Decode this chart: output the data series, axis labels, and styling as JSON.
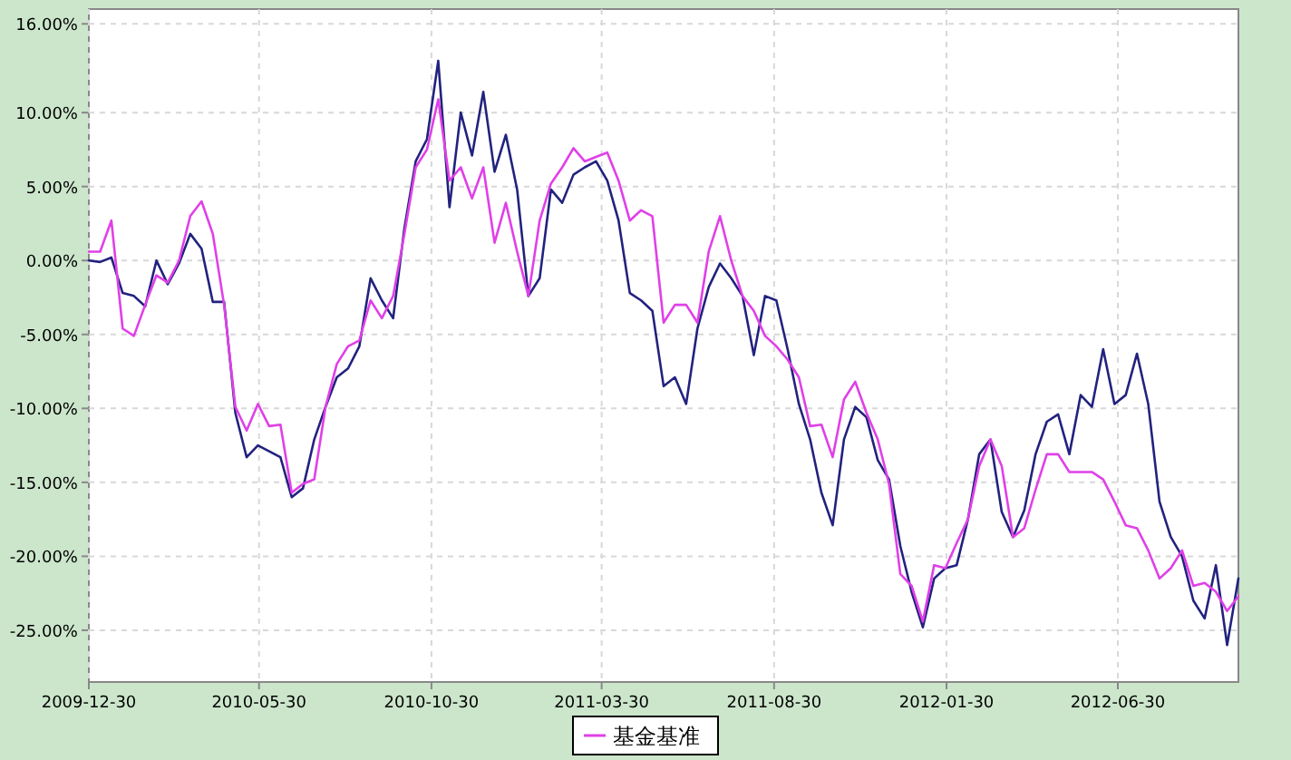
{
  "chart_data": {
    "type": "line",
    "x": [
      "2009-12-30",
      "2010-01-09",
      "2010-01-19",
      "2010-01-29",
      "2010-02-08",
      "2010-02-18",
      "2010-02-28",
      "2010-03-10",
      "2010-03-20",
      "2010-03-30",
      "2010-04-09",
      "2010-04-19",
      "2010-04-29",
      "2010-05-09",
      "2010-05-19",
      "2010-05-29",
      "2010-06-08",
      "2010-06-18",
      "2010-06-28",
      "2010-07-08",
      "2010-07-18",
      "2010-07-28",
      "2010-08-07",
      "2010-08-17",
      "2010-08-27",
      "2010-09-06",
      "2010-09-16",
      "2010-09-26",
      "2010-10-06",
      "2010-10-16",
      "2010-10-26",
      "2010-11-05",
      "2010-11-15",
      "2010-11-25",
      "2010-12-05",
      "2010-12-15",
      "2010-12-25",
      "2011-01-04",
      "2011-01-14",
      "2011-01-24",
      "2011-02-03",
      "2011-02-13",
      "2011-02-23",
      "2011-03-05",
      "2011-03-15",
      "2011-03-25",
      "2011-04-04",
      "2011-04-14",
      "2011-04-24",
      "2011-05-04",
      "2011-05-14",
      "2011-05-24",
      "2011-06-03",
      "2011-06-13",
      "2011-06-23",
      "2011-07-03",
      "2011-07-13",
      "2011-07-23",
      "2011-08-02",
      "2011-08-12",
      "2011-08-22",
      "2011-09-01",
      "2011-09-11",
      "2011-09-21",
      "2011-10-01",
      "2011-10-11",
      "2011-10-21",
      "2011-10-31",
      "2011-11-10",
      "2011-11-20",
      "2011-11-30",
      "2011-12-10",
      "2011-12-20",
      "2011-12-30",
      "2012-01-09",
      "2012-01-19",
      "2012-01-29",
      "2012-02-08",
      "2012-02-18",
      "2012-02-28",
      "2012-03-09",
      "2012-03-19",
      "2012-03-29",
      "2012-04-08",
      "2012-04-18",
      "2012-04-28",
      "2012-05-08",
      "2012-05-18",
      "2012-05-28",
      "2012-06-07",
      "2012-06-17",
      "2012-06-27",
      "2012-07-07",
      "2012-07-17",
      "2012-07-27",
      "2012-08-06",
      "2012-08-16",
      "2012-08-26",
      "2012-09-05",
      "2012-09-15",
      "2012-09-25",
      "2012-10-05",
      "2012-10-15"
    ],
    "series": [
      {
        "color": "#22227f",
        "values": [
          0.0,
          -0.1,
          0.2,
          -2.2,
          -2.4,
          -3.1,
          0.0,
          -1.6,
          -0.2,
          1.8,
          0.8,
          -2.8,
          -2.8,
          -10.3,
          -13.3,
          -12.5,
          -12.9,
          -13.3,
          -16.0,
          -15.4,
          -12.1,
          -9.9,
          -7.9,
          -7.3,
          -5.8,
          -1.2,
          -2.7,
          -3.9,
          2.2,
          6.7,
          8.2,
          13.5,
          3.6,
          10.0,
          7.1,
          11.4,
          6.0,
          8.5,
          4.8,
          -2.4,
          -1.2,
          4.8,
          3.9,
          5.8,
          6.3,
          6.7,
          5.4,
          2.7,
          -2.2,
          -2.7,
          -3.4,
          -8.5,
          -7.9,
          -9.7,
          -4.6,
          -1.8,
          -0.2,
          -1.2,
          -2.4,
          -6.4,
          -2.4,
          -2.7,
          -6.0,
          -9.7,
          -12.1,
          -15.7,
          -17.9,
          -12.1,
          -9.9,
          -10.6,
          -13.5,
          -14.8,
          -19.3,
          -22.4,
          -24.8,
          -21.5,
          -20.8,
          -20.6,
          -17.5,
          -13.1,
          -12.1,
          -17.0,
          -18.7,
          -16.9,
          -13.1,
          -10.9,
          -10.4,
          -13.1,
          -9.1,
          -9.9,
          -6.0,
          -9.7,
          -9.1,
          -6.3,
          -9.7,
          -16.3,
          -18.7,
          -20.0,
          -23.0,
          -24.2,
          -20.6,
          -26.0,
          -21.5
        ]
      },
      {
        "name": "基金基准",
        "color": "#e040e8",
        "values": [
          0.6,
          0.6,
          2.7,
          -4.6,
          -5.1,
          -3.0,
          -1.0,
          -1.5,
          0.0,
          3.0,
          4.0,
          1.8,
          -3.0,
          -9.9,
          -11.5,
          -9.7,
          -11.2,
          -11.1,
          -15.7,
          -15.1,
          -14.8,
          -9.9,
          -7.0,
          -5.8,
          -5.4,
          -2.7,
          -3.9,
          -2.4,
          1.8,
          6.3,
          7.5,
          10.9,
          5.4,
          6.3,
          4.2,
          6.3,
          1.2,
          3.9,
          0.6,
          -2.4,
          2.7,
          5.2,
          6.3,
          7.6,
          6.7,
          7.0,
          7.3,
          5.4,
          2.7,
          3.4,
          3.0,
          -4.2,
          -3.0,
          -3.0,
          -4.2,
          0.6,
          3.0,
          0.0,
          -2.4,
          -3.4,
          -5.1,
          -5.8,
          -6.7,
          -7.9,
          -11.2,
          -11.1,
          -13.3,
          -9.4,
          -8.2,
          -10.3,
          -12.1,
          -15.1,
          -21.2,
          -22.0,
          -24.4,
          -20.6,
          -20.8,
          -19.1,
          -17.5,
          -13.9,
          -12.1,
          -13.9,
          -18.7,
          -18.1,
          -15.5,
          -13.1,
          -13.1,
          -14.3,
          -14.3,
          -14.3,
          -14.8,
          -16.3,
          -17.9,
          -18.1,
          -19.6,
          -21.5,
          -20.8,
          -19.6,
          -22.0,
          -21.8,
          -22.4,
          -23.7,
          -22.7
        ]
      }
    ],
    "xlim": [
      "2009-12-30",
      "2012-10-15"
    ],
    "xticks": [
      "2009-12-30",
      "2010-05-30",
      "2010-10-30",
      "2011-03-30",
      "2011-08-30",
      "2012-01-30",
      "2012-06-30"
    ],
    "ylim": [
      -28.5,
      17
    ],
    "yticks": [
      {
        "value": 16,
        "label": "16.00%"
      },
      {
        "value": 10,
        "label": "10.00%"
      },
      {
        "value": 5,
        "label": "5.00%"
      },
      {
        "value": 0,
        "label": "0.00%"
      },
      {
        "value": -5,
        "label": "-5.00%"
      },
      {
        "value": -10,
        "label": "-10.00%"
      },
      {
        "value": -15,
        "label": "-15.00%"
      },
      {
        "value": -20,
        "label": "-20.00%"
      },
      {
        "value": -25,
        "label": "-25.00%"
      }
    ],
    "grid": true,
    "legend": "bottom"
  }
}
